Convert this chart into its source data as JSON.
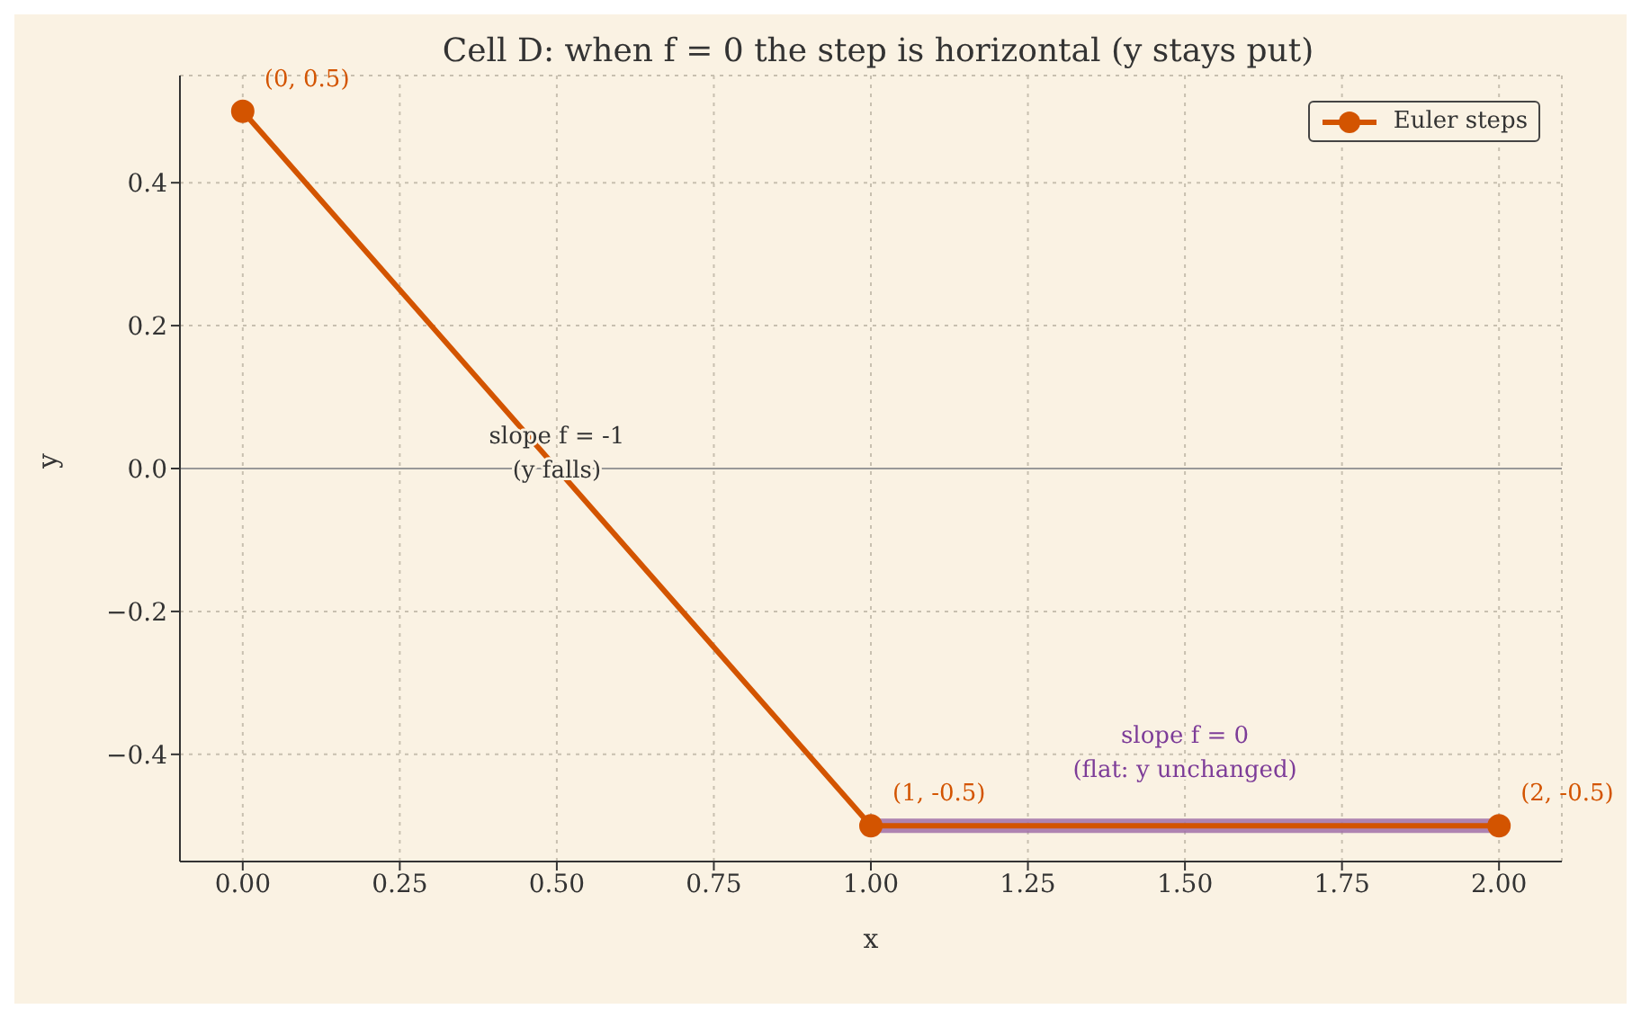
{
  "chart_data": {
    "type": "line",
    "title": "Cell D: when f = 0 the step is horizontal (y stays put)",
    "xlabel": "x",
    "ylabel": "y",
    "series": [
      {
        "name": "Euler steps",
        "color": "#d35400",
        "x": [
          0,
          1,
          2
        ],
        "values": [
          0.5,
          -0.5,
          -0.5
        ]
      },
      {
        "color": "#a070a8",
        "x": [
          1,
          2
        ],
        "values": [
          -0.5,
          -0.5
        ],
        "marker": "none"
      }
    ],
    "xlim": [
      -0.1,
      2.1
    ],
    "xticks": [
      {
        "value": 0,
        "label": "0.00"
      },
      {
        "value": 0.25,
        "label": "0.25"
      },
      {
        "value": 0.5,
        "label": "0.50"
      },
      {
        "value": 0.75,
        "label": "0.75"
      },
      {
        "value": 1,
        "label": "1.00"
      },
      {
        "value": 1.25,
        "label": "1.25"
      },
      {
        "value": 1.5,
        "label": "1.50"
      },
      {
        "value": 1.75,
        "label": "1.75"
      },
      {
        "value": 2,
        "label": "2.00"
      }
    ],
    "ylim": [
      -0.55,
      0.55
    ],
    "yticks": [
      {
        "value": -0.4,
        "label": "−0.4"
      },
      {
        "value": -0.2,
        "label": "−0.2"
      },
      {
        "value": 0,
        "label": "0.0"
      },
      {
        "value": 0.2,
        "label": "0.2"
      },
      {
        "value": 0.4,
        "label": "0.4"
      }
    ],
    "ref_lines": [
      {
        "axis": "y",
        "value": 0,
        "color": "#999999"
      }
    ],
    "annotations": [
      {
        "text": "(0, 0.5)",
        "x": 0,
        "y": 0.5
      },
      {
        "text": "(1, -0.5)",
        "x": 1,
        "y": -0.5
      },
      {
        "text": "(2, -0.5)",
        "x": 2,
        "y": -0.5
      },
      "slope f = -1\n(y falls)",
      "slope f = 0\n(flat: y unchanged)"
    ],
    "grid": true,
    "legend": "top right",
    "marker": "circle",
    "line_style": "solid"
  }
}
